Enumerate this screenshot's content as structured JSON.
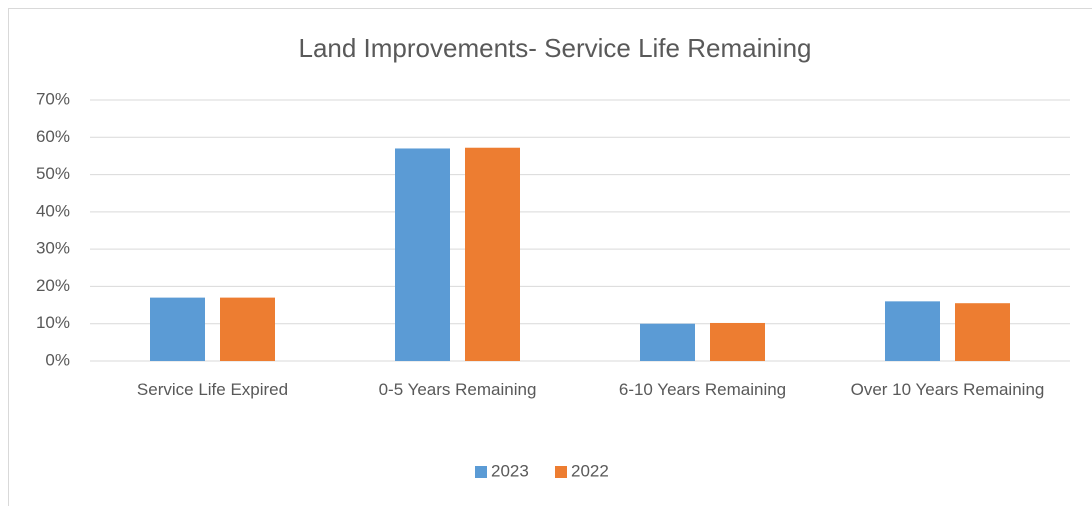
{
  "chart_data": {
    "type": "bar",
    "title": "Land Improvements- Service Life Remaining",
    "categories": [
      "Service Life Expired",
      "0-5 Years Remaining",
      "6-10 Years Remaining",
      "Over 10 Years Remaining"
    ],
    "series": [
      {
        "name": "2023",
        "color": "#5b9bd5",
        "values": [
          17,
          57,
          10,
          16
        ]
      },
      {
        "name": "2022",
        "color": "#ed7d31",
        "values": [
          17,
          57.2,
          10.2,
          15.5
        ]
      }
    ],
    "ylim": [
      0,
      70
    ],
    "yticks": [
      {
        "value": 0,
        "label": "0%"
      },
      {
        "value": 10,
        "label": "10%"
      },
      {
        "value": 20,
        "label": "20%"
      },
      {
        "value": 30,
        "label": "30%"
      },
      {
        "value": 40,
        "label": "40%"
      },
      {
        "value": 50,
        "label": "50%"
      },
      {
        "value": 60,
        "label": "60%"
      },
      {
        "value": 70,
        "label": "70%"
      }
    ],
    "grid": true,
    "legend": "bottom"
  }
}
